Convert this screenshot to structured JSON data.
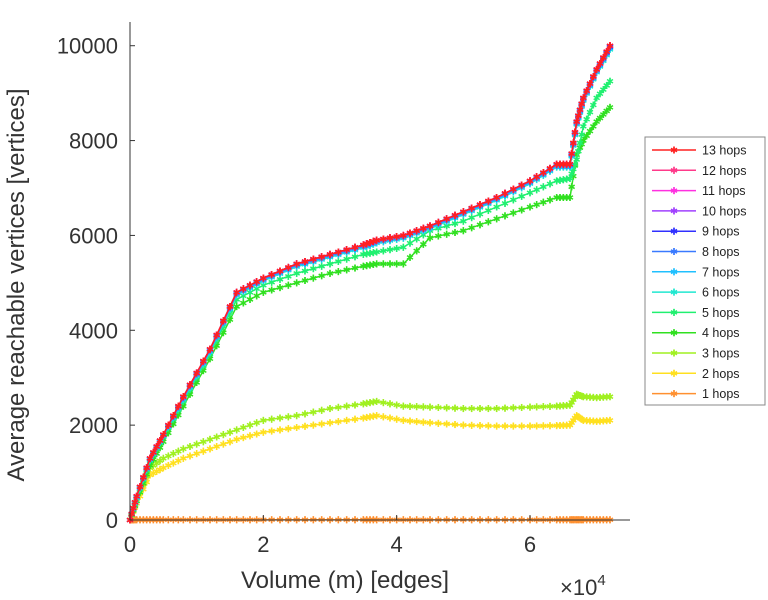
{
  "chart_data": {
    "type": "line",
    "xlabel": "Volume (m) [edges]",
    "ylabel": "Average reachable vertices [vertices]",
    "x_multiplier": "×10",
    "x_multiplier_exp": "4",
    "xlim": [
      0,
      7.5
    ],
    "ylim": [
      0,
      10500
    ],
    "xticks": [
      0,
      2,
      4,
      6
    ],
    "yticks": [
      0,
      2000,
      4000,
      6000,
      8000,
      10000
    ],
    "legend_position": "outside-right",
    "x": [
      0,
      0.1,
      0.3,
      0.5,
      0.8,
      1.2,
      1.6,
      2,
      2.5,
      3,
      3.5,
      3.7,
      4.1,
      4.5,
      5,
      5.5,
      6,
      6.4,
      6.6,
      6.7,
      6.8,
      7,
      7.2
    ],
    "series": [
      {
        "name": "13 hops",
        "color": "#ff2020",
        "values": [
          0,
          500,
          1300,
          1800,
          2600,
          3600,
          4800,
          5100,
          5400,
          5600,
          5800,
          5900,
          6000,
          6200,
          6500,
          6800,
          7150,
          7500,
          7500,
          8400,
          8900,
          9500,
          10000
        ]
      },
      {
        "name": "12 hops",
        "color": "#ff3a8a",
        "values": [
          0,
          500,
          1300,
          1800,
          2600,
          3600,
          4800,
          5100,
          5400,
          5600,
          5800,
          5900,
          6000,
          6200,
          6500,
          6800,
          7150,
          7500,
          7500,
          8400,
          8900,
          9500,
          10000
        ]
      },
      {
        "name": "11 hops",
        "color": "#ff30e0",
        "values": [
          0,
          500,
          1300,
          1800,
          2600,
          3600,
          4800,
          5100,
          5400,
          5600,
          5800,
          5900,
          6000,
          6200,
          6500,
          6800,
          7150,
          7500,
          7500,
          8400,
          8900,
          9500,
          10000
        ]
      },
      {
        "name": "10 hops",
        "color": "#a040ff",
        "values": [
          0,
          500,
          1300,
          1800,
          2600,
          3600,
          4800,
          5100,
          5400,
          5600,
          5800,
          5900,
          6000,
          6200,
          6500,
          6800,
          7150,
          7500,
          7500,
          8400,
          8900,
          9500,
          10000
        ]
      },
      {
        "name": "9 hops",
        "color": "#3030ff",
        "values": [
          0,
          500,
          1300,
          1800,
          2600,
          3600,
          4800,
          5100,
          5400,
          5600,
          5800,
          5900,
          6000,
          6200,
          6500,
          6800,
          7150,
          7500,
          7500,
          8400,
          8900,
          9500,
          9980
        ]
      },
      {
        "name": "8 hops",
        "color": "#3a7aff",
        "values": [
          0,
          490,
          1290,
          1790,
          2580,
          3580,
          4780,
          5080,
          5380,
          5580,
          5780,
          5880,
          5980,
          6180,
          6480,
          6780,
          7130,
          7480,
          7480,
          8380,
          8880,
          9480,
          9970
        ]
      },
      {
        "name": "7 hops",
        "color": "#20c0ff",
        "values": [
          0,
          480,
          1280,
          1780,
          2560,
          3560,
          4760,
          5060,
          5360,
          5560,
          5760,
          5860,
          5960,
          6160,
          6460,
          6760,
          7110,
          7460,
          7460,
          8360,
          8860,
          9460,
          9950
        ]
      },
      {
        "name": "6 hops",
        "color": "#20e8d0",
        "values": [
          0,
          470,
          1270,
          1770,
          2540,
          3540,
          4740,
          5040,
          5340,
          5540,
          5740,
          5840,
          5940,
          6140,
          6440,
          6740,
          7090,
          7440,
          7440,
          8340,
          8840,
          9440,
          9920
        ]
      },
      {
        "name": "5 hops",
        "color": "#20f070",
        "values": [
          0,
          450,
          1250,
          1750,
          2500,
          3500,
          4650,
          4950,
          5200,
          5400,
          5600,
          5650,
          5750,
          6100,
          6300,
          6600,
          6900,
          7150,
          7200,
          7600,
          8300,
          8900,
          9250
        ]
      },
      {
        "name": "4 hops",
        "color": "#30e020",
        "values": [
          0,
          400,
          1150,
          1650,
          2400,
          3400,
          4500,
          4800,
          5000,
          5200,
          5350,
          5400,
          5400,
          5950,
          6100,
          6350,
          6600,
          6800,
          6800,
          7700,
          8000,
          8400,
          8700
        ]
      },
      {
        "name": "3 hops",
        "color": "#a0f020",
        "values": [
          0,
          400,
          1100,
          1300,
          1500,
          1700,
          1900,
          2100,
          2200,
          2350,
          2450,
          2500,
          2400,
          2380,
          2350,
          2350,
          2380,
          2400,
          2420,
          2650,
          2600,
          2580,
          2600
        ]
      },
      {
        "name": "2 hops",
        "color": "#ffe020",
        "values": [
          0,
          350,
          950,
          1100,
          1300,
          1500,
          1700,
          1850,
          1950,
          2050,
          2150,
          2200,
          2100,
          2050,
          2000,
          1980,
          1980,
          1990,
          2000,
          2200,
          2100,
          2080,
          2100
        ]
      },
      {
        "name": "1 hops",
        "color": "#ff9030",
        "values": [
          0,
          5,
          5,
          5,
          5,
          5,
          5,
          5,
          5,
          5,
          5,
          5,
          5,
          5,
          5,
          5,
          5,
          5,
          5,
          5,
          5,
          5,
          5
        ]
      }
    ]
  }
}
